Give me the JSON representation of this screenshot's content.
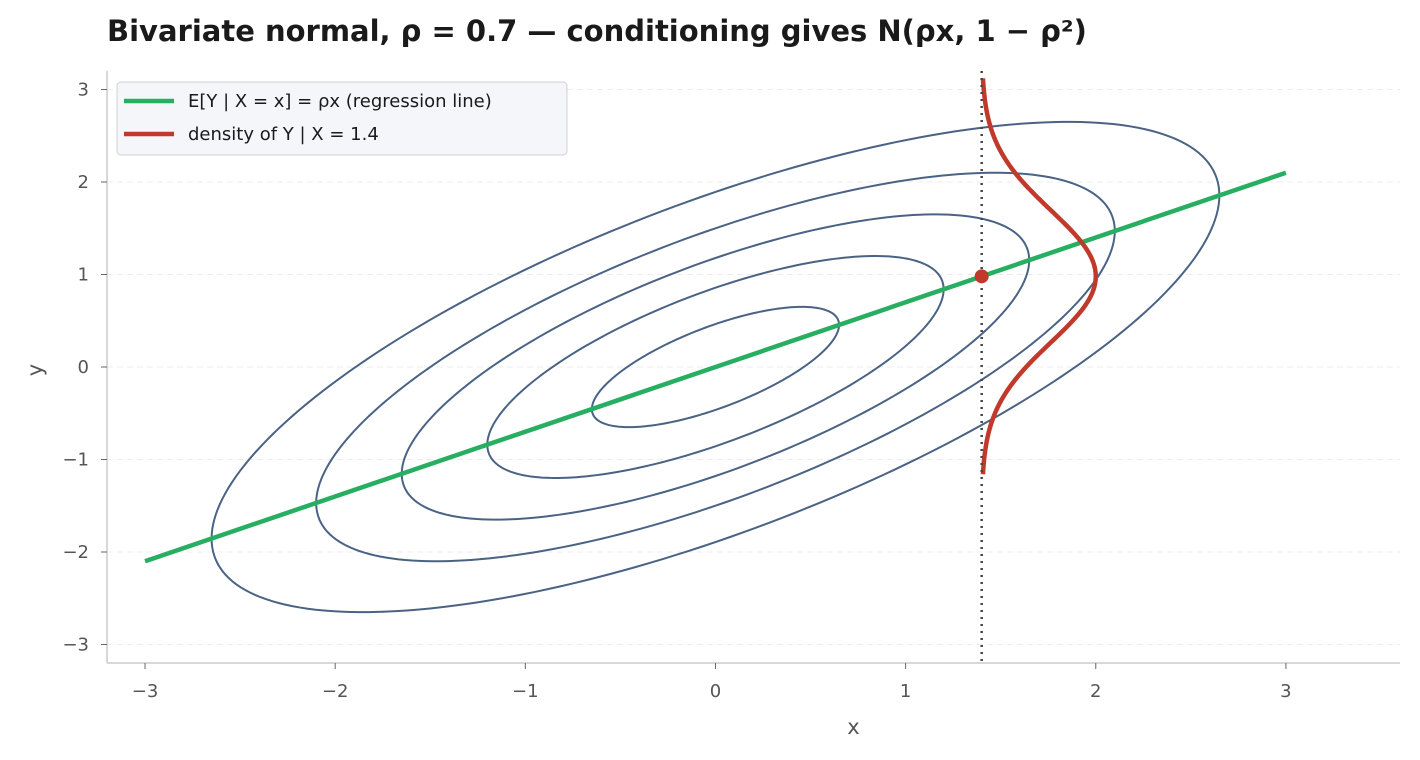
{
  "chart_data": {
    "type": "line",
    "title": "Bivariate normal, ρ = 0.7 — conditioning gives N(ρx, 1 − ρ²)",
    "xlabel": "x",
    "ylabel": "y",
    "xlim": [
      -3.2,
      3.6
    ],
    "ylim": [
      -3.2,
      3.2
    ],
    "xticks": [
      -3,
      -2,
      -1,
      0,
      1,
      2,
      3
    ],
    "yticks": [
      -3,
      -2,
      -1,
      0,
      1,
      2,
      3
    ],
    "xtick_labels": [
      "−3",
      "−2",
      "−1",
      "0",
      "1",
      "2",
      "3"
    ],
    "ytick_labels": [
      "−3",
      "−2",
      "−1",
      "0",
      "1",
      "2",
      "3"
    ],
    "grid": "horizontal dashed",
    "legend_position": "top-left",
    "rho": 0.7,
    "contour_radii": [
      0.65,
      1.2,
      1.65,
      2.1,
      2.65
    ],
    "series": [
      {
        "name": "E[Y | X = x] = ρx (regression line)",
        "color": "#27ae60",
        "x": [
          -3,
          3
        ],
        "y": [
          -2.1,
          2.1
        ]
      },
      {
        "name": "density of Y | X = 1.4",
        "color": "#c0392b",
        "condition_x": 1.4,
        "mean": 0.98,
        "variance": 0.51,
        "peak_offset": 0.6,
        "y_range": [
          -1.16,
          3.12
        ]
      }
    ],
    "annotations": [
      {
        "type": "vertical-line",
        "x": 1.4,
        "style": "dotted",
        "color": "#444444"
      },
      {
        "type": "point",
        "x": 1.4,
        "y": 0.98,
        "color": "#c0392b"
      }
    ],
    "colors": {
      "contour": "#4a6385",
      "regression": "#27ae60",
      "density": "#c0392b",
      "vline": "#444444",
      "grid": "#ececec",
      "axis": "#cccccc",
      "legend_bg": "#f5f6fa"
    }
  }
}
